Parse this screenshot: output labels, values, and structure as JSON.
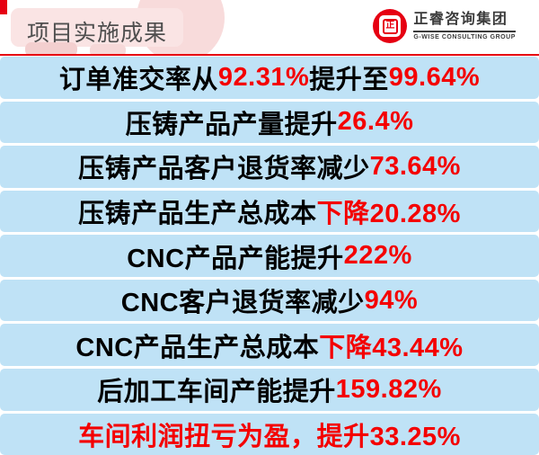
{
  "colors": {
    "accent_red": "#E60012",
    "number_red": "#F40000",
    "bar_blue": "#BFE2F6",
    "title_gray": "#4F4F4F",
    "logo_dark": "#3A3A3A"
  },
  "header": {
    "title": "项目实施成果",
    "logo": {
      "company_name": "正睿咨询集团",
      "tagline": "G-WISE CONSULTING GROUP",
      "seal_glyph": "正"
    }
  },
  "rows": [
    {
      "segments": [
        {
          "text": "订单准交率从",
          "color": "black"
        },
        {
          "text": "92.31%",
          "color": "red"
        },
        {
          "text": "提升至",
          "color": "black"
        },
        {
          "text": "99.64%",
          "color": "red"
        }
      ]
    },
    {
      "segments": [
        {
          "text": "压铸产品产量提升",
          "color": "black"
        },
        {
          "text": "26.4%",
          "color": "red"
        }
      ]
    },
    {
      "segments": [
        {
          "text": "压铸产品客户退货率减少",
          "color": "black"
        },
        {
          "text": "73.64%",
          "color": "red"
        }
      ]
    },
    {
      "segments": [
        {
          "text": "压铸产品生产总成本",
          "color": "black"
        },
        {
          "text": "下降20.28%",
          "color": "red"
        }
      ]
    },
    {
      "segments": [
        {
          "text": "CNC产品产能提升",
          "color": "black"
        },
        {
          "text": "222%",
          "color": "red"
        }
      ]
    },
    {
      "segments": [
        {
          "text": "CNC客户退货率减少",
          "color": "black"
        },
        {
          "text": "94%",
          "color": "red"
        }
      ]
    },
    {
      "segments": [
        {
          "text": "CNC产品生产总成本",
          "color": "black"
        },
        {
          "text": "下降43.44%",
          "color": "red"
        }
      ]
    },
    {
      "segments": [
        {
          "text": "后加工车间产能提升",
          "color": "black"
        },
        {
          "text": "159.82%",
          "color": "red"
        }
      ]
    },
    {
      "segments": [
        {
          "text": "车间利润扭亏为盈，提升33.25%",
          "color": "red"
        }
      ]
    }
  ]
}
